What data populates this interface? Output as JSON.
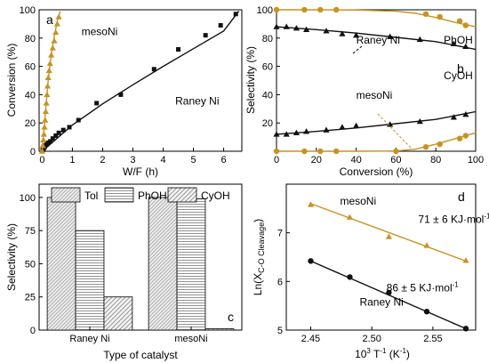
{
  "colors": {
    "raney": "#111111",
    "meso": "#c8931e"
  },
  "chart_data": [
    {
      "panel": "a",
      "type": "scatter",
      "xlabel": "W/F (h)",
      "ylabel": "Conversion (%)",
      "xlim": [
        -0.1,
        6.6
      ],
      "ylim": [
        0,
        100
      ],
      "xticks": [
        0,
        1,
        2,
        3,
        4,
        5,
        6
      ],
      "yticks": [
        0,
        20,
        40,
        60,
        80,
        100
      ],
      "series": [
        {
          "name": "Raney Ni",
          "marker": "square",
          "color": "raney",
          "x": [
            0.02,
            0.05,
            0.08,
            0.1,
            0.15,
            0.2,
            0.27,
            0.35,
            0.45,
            0.55,
            0.7,
            0.9,
            1.2,
            1.8,
            2.6,
            3.7,
            4.5,
            5.4,
            5.9,
            6.4
          ],
          "y": [
            1,
            2,
            3,
            4,
            5,
            6,
            7,
            9,
            11,
            13,
            15,
            17,
            22,
            34,
            40,
            58,
            72,
            82,
            89,
            97
          ],
          "fit_x": [
            0,
            1,
            2,
            3,
            4,
            5,
            6,
            6.5
          ],
          "fit_y": [
            0,
            18.5,
            33.5,
            47,
            60,
            72.5,
            85,
            99
          ]
        },
        {
          "name": "mesoNi",
          "marker": "triangle",
          "color": "meso",
          "x": [
            0.0,
            0.02,
            0.04,
            0.06,
            0.08,
            0.1,
            0.12,
            0.14,
            0.16,
            0.18,
            0.2,
            0.23,
            0.26,
            0.3,
            0.35,
            0.4,
            0.45,
            0.5,
            0.55
          ],
          "y": [
            0,
            4,
            8,
            12,
            17,
            22,
            28,
            34,
            40,
            46,
            52,
            57,
            62,
            68,
            73,
            78,
            84,
            90,
            95
          ],
          "fit_x": [
            0,
            0.1,
            0.2,
            0.3,
            0.4,
            0.5,
            0.6
          ],
          "fit_y": [
            0,
            25,
            50,
            68,
            81,
            92,
            99
          ]
        }
      ],
      "annotations": [
        {
          "text": "mesoNi",
          "x": 1.3,
          "y": 82,
          "color": "raney"
        },
        {
          "text": "Raney Ni",
          "x": 4.4,
          "y": 33,
          "color": "raney"
        }
      ]
    },
    {
      "panel": "b",
      "type": "scatter",
      "xlabel": "Conversion (%)",
      "ylabel": "Selectivity (%)",
      "xlim": [
        0,
        100
      ],
      "ylim": [
        0,
        100
      ],
      "xticks": [
        0,
        20,
        40,
        60,
        80,
        100
      ],
      "yticks": [
        20,
        40,
        60,
        80,
        100
      ],
      "series": [
        {
          "name": "mesoNi PhOH",
          "marker": "circle",
          "color": "meso",
          "x": [
            0,
            14,
            22,
            30,
            75,
            82,
            92,
            95
          ],
          "y": [
            100,
            100,
            100,
            100,
            97,
            95,
            92,
            89
          ],
          "fit_x": [
            0,
            20,
            40,
            60,
            70,
            80,
            90,
            100
          ],
          "fit_y": [
            100,
            100,
            99.8,
            99,
            97.5,
            94.5,
            91,
            88
          ]
        },
        {
          "name": "mesoNi CyOH",
          "marker": "circle",
          "color": "meso",
          "x": [
            0,
            14,
            22,
            30,
            60,
            75,
            82,
            92,
            95
          ],
          "y": [
            0,
            0,
            0,
            0,
            0,
            3,
            5,
            9,
            11
          ],
          "fit_x": [
            0,
            20,
            40,
            60,
            70,
            80,
            90,
            100
          ],
          "fit_y": [
            0,
            0,
            0,
            0.2,
            1.5,
            5,
            9,
            13
          ]
        },
        {
          "name": "Raney Ni PhOH",
          "marker": "triangle",
          "color": "raney",
          "x": [
            0,
            5,
            10,
            15,
            25,
            33,
            40,
            57,
            72,
            89,
            95
          ],
          "y": [
            88,
            88,
            87,
            86,
            85,
            83,
            82,
            81,
            79,
            76,
            74
          ],
          "fit_x": [
            0,
            20,
            40,
            60,
            80,
            100
          ],
          "fit_y": [
            88,
            86,
            83.5,
            80.5,
            77.5,
            72
          ]
        },
        {
          "name": "Raney Ni CyOH",
          "marker": "triangle",
          "color": "raney",
          "x": [
            0,
            5,
            10,
            15,
            25,
            33,
            40,
            57,
            72,
            89,
            95
          ],
          "y": [
            12,
            12,
            13,
            14,
            15,
            17,
            18,
            19,
            21,
            24,
            26
          ],
          "fit_x": [
            0,
            20,
            40,
            60,
            80,
            100
          ],
          "fit_y": [
            12,
            14,
            16.5,
            19.5,
            22.5,
            28
          ]
        }
      ],
      "annotations": [
        {
          "text": "Raney Ni",
          "x": 40,
          "y": 76,
          "color": "raney"
        },
        {
          "text": "PhOH",
          "x": 84,
          "y": 76,
          "color": "raney"
        },
        {
          "text": "CyOH",
          "x": 84,
          "y": 51,
          "color": "raney"
        },
        {
          "text": "mesoNi",
          "x": 40,
          "y": 37,
          "color": "meso"
        }
      ]
    },
    {
      "panel": "c",
      "type": "bar",
      "xlabel": "Type of catalyst",
      "ylabel": "Selectivity (%)",
      "ylim": [
        0,
        110
      ],
      "yticks": [
        0,
        25,
        50,
        75,
        100
      ],
      "categories": [
        "Raney Ni",
        "mesoNi"
      ],
      "series": [
        {
          "name": "Tol",
          "pattern": "diag-dense",
          "values": [
            100,
            100
          ]
        },
        {
          "name": "PhOH",
          "pattern": "horizontal",
          "values": [
            75,
            99
          ]
        },
        {
          "name": "CyOH",
          "pattern": "diag-coarse",
          "values": [
            25,
            1
          ]
        }
      ]
    },
    {
      "panel": "d",
      "type": "scatter",
      "xlabel_main": "10",
      "xlabel_sup": "3",
      "xlabel_mid": " T",
      "xlabel_sup2": "-1",
      "xlabel_tail": " (K",
      "xlabel_sup3": "-1",
      "xlabel_end": ")",
      "ylabel_main": "Ln(X",
      "ylabel_sub": "C-O Cleavage",
      "ylabel_end": ")",
      "xlim": [
        2.43,
        2.585
      ],
      "ylim": [
        5,
        8
      ],
      "xticks": [
        2.45,
        2.5,
        2.55
      ],
      "yticks": [
        5,
        6,
        7
      ],
      "series": [
        {
          "name": "mesoNi",
          "marker": "triangle",
          "color": "meso",
          "x": [
            2.45,
            2.482,
            2.514,
            2.545,
            2.577
          ],
          "y": [
            7.58,
            7.32,
            6.92,
            6.74,
            6.43
          ],
          "fit_x": [
            2.45,
            2.577
          ],
          "fit_y": [
            7.6,
            6.42
          ]
        },
        {
          "name": "Raney Ni",
          "marker": "circle",
          "color": "raney",
          "x": [
            2.45,
            2.482,
            2.514,
            2.545,
            2.577
          ],
          "y": [
            6.42,
            6.09,
            5.77,
            5.38,
            5.03
          ],
          "fit_x": [
            2.45,
            2.577
          ],
          "fit_y": [
            6.42,
            5.03
          ]
        }
      ],
      "annotations": [
        {
          "text": "mesoNi",
          "x": 2.474,
          "y": 7.58,
          "color": "meso"
        },
        {
          "text_main": "71 ± 6 KJ·mol",
          "text_sup": "-1",
          "x": 2.538,
          "y": 7.2,
          "color": "meso"
        },
        {
          "text_main": "86 ± 5  KJ·mol",
          "text_sup": "-1",
          "x": 2.512,
          "y": 5.8,
          "color": "raney"
        },
        {
          "text": "Raney Ni",
          "x": 2.49,
          "y": 5.5,
          "color": "raney"
        }
      ]
    }
  ]
}
